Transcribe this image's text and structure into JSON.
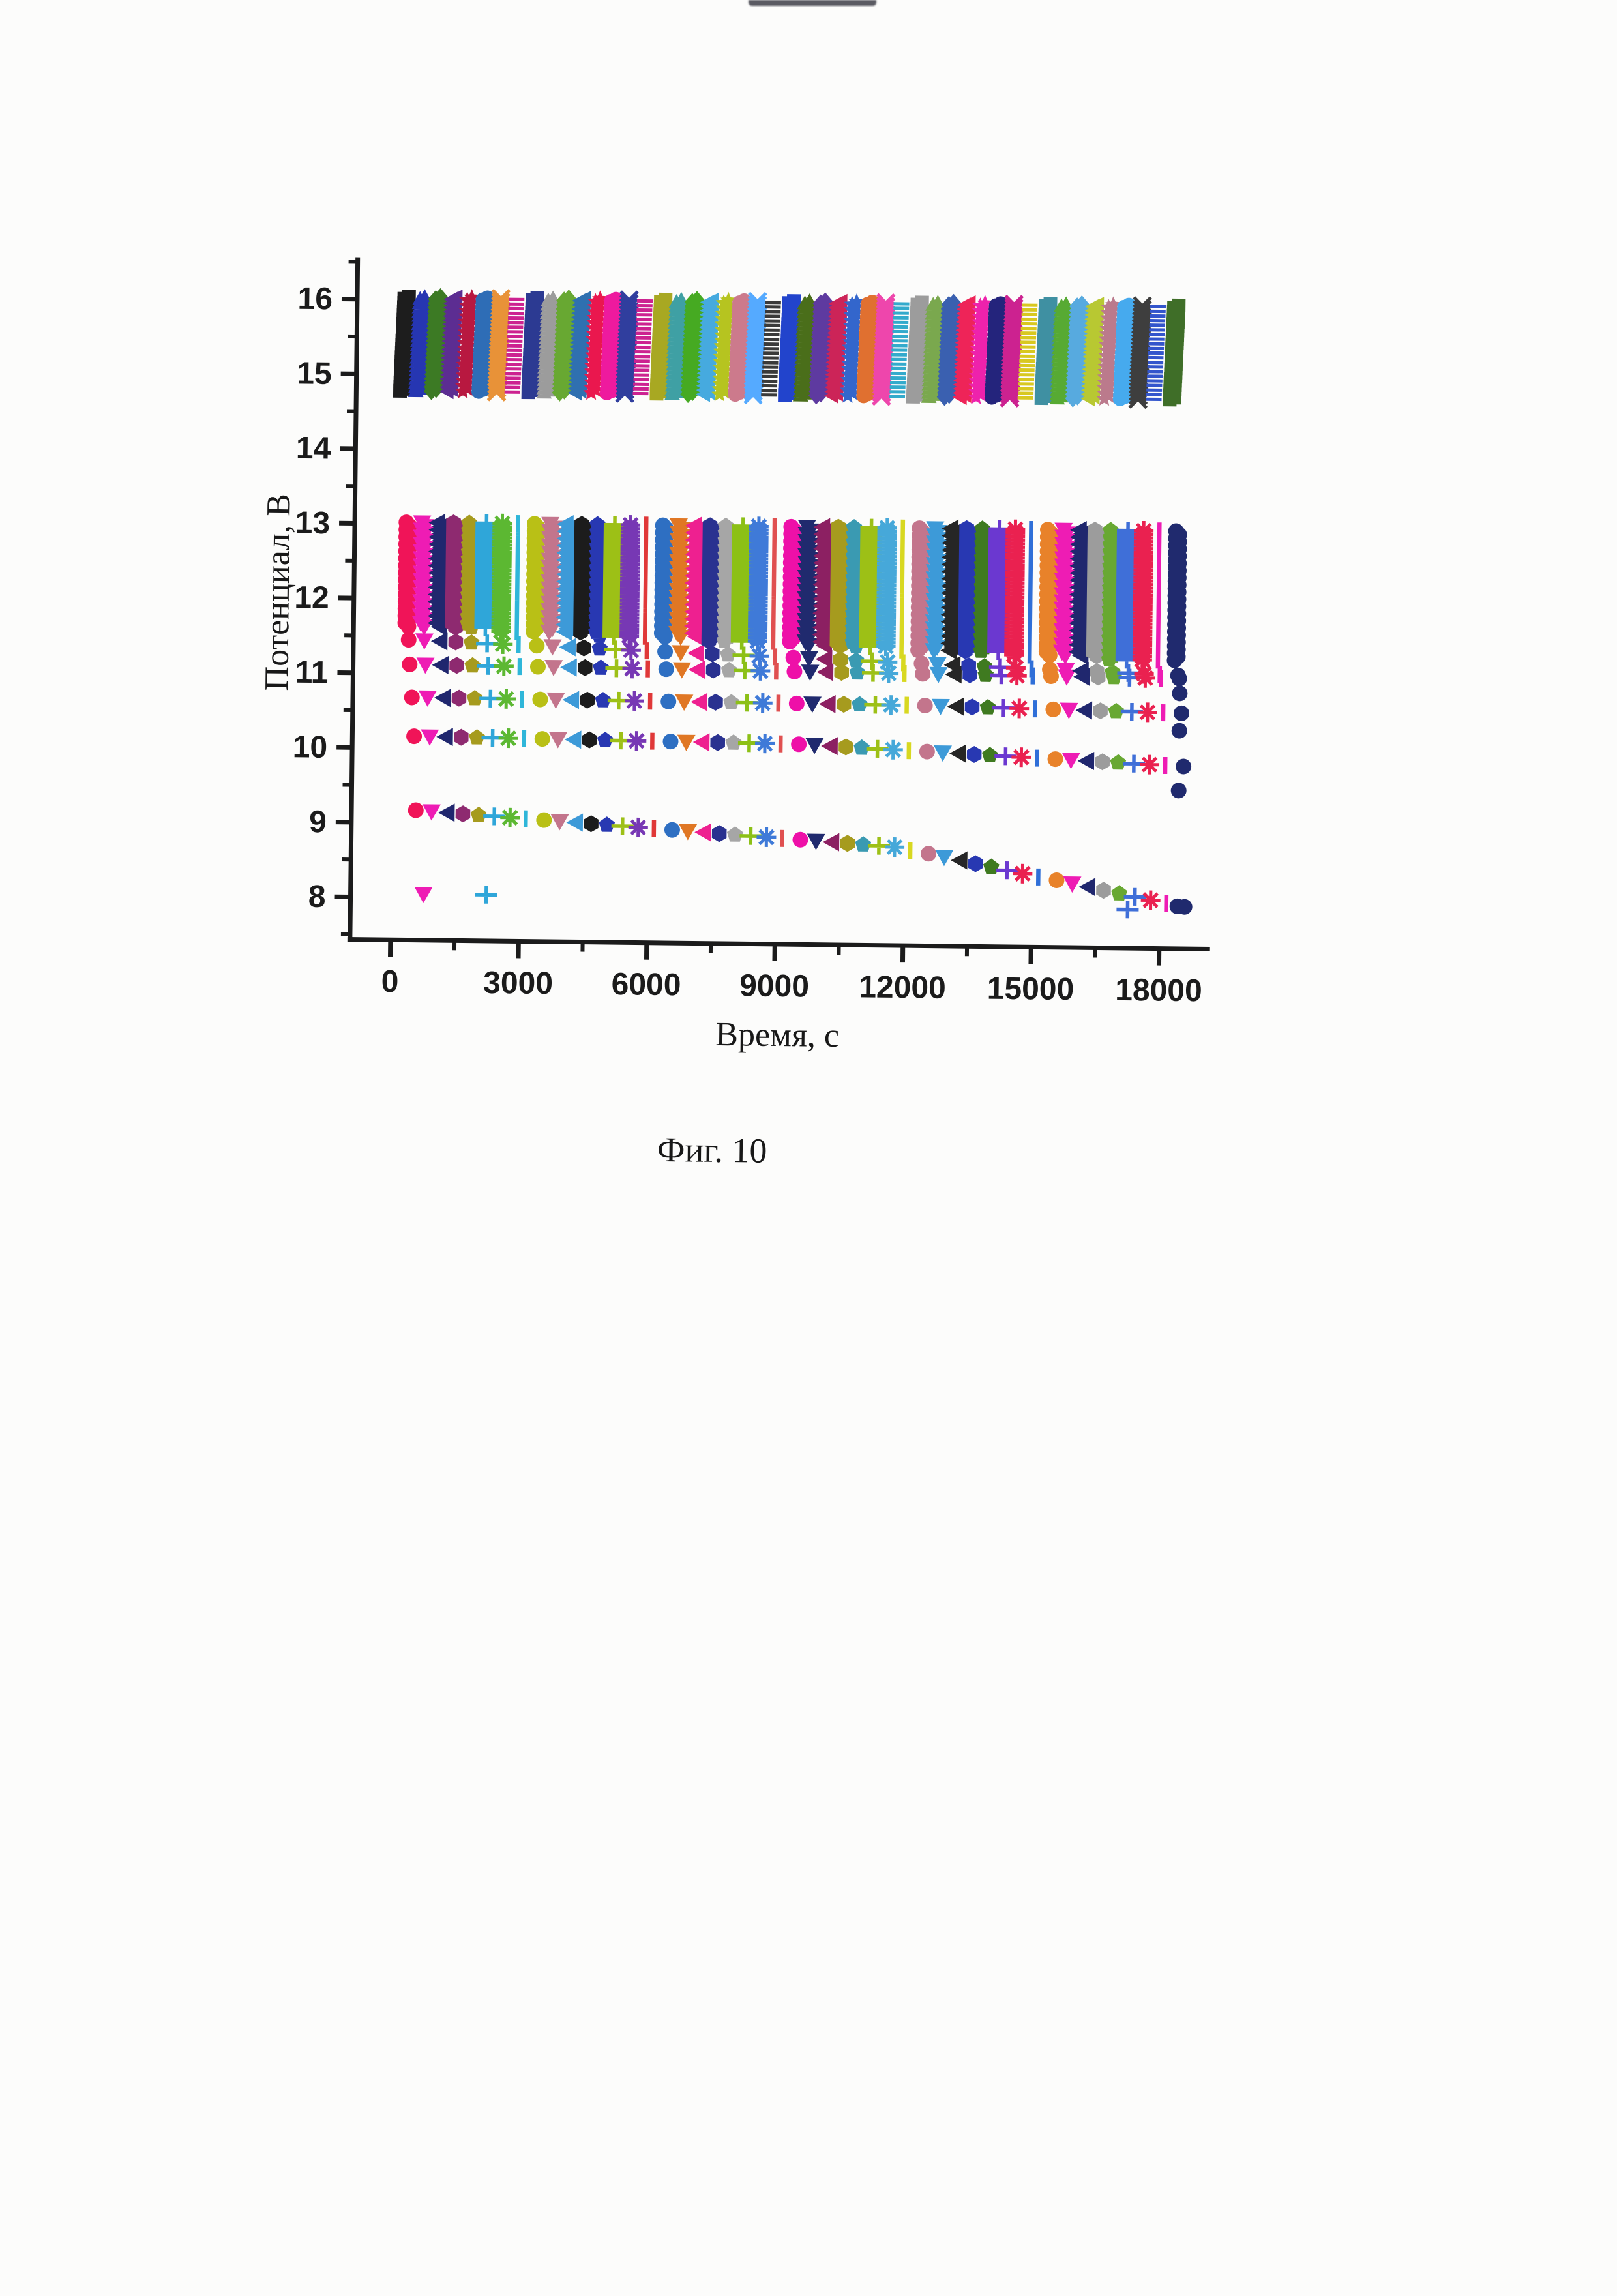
{
  "page": {
    "caption": "Фиг. 10",
    "background": "#fcfcfb",
    "ink_color": "#1b1b1b"
  },
  "chart_data": {
    "type": "scatter",
    "title": "",
    "xlabel": "Время, с",
    "ylabel": "Потенциал, В",
    "xlim": [
      -950,
      19200
    ],
    "ylim": [
      7.4,
      16.55
    ],
    "xticks": [
      0,
      3000,
      6000,
      9000,
      12000,
      15000,
      18000
    ],
    "xminor_step": 1500,
    "yticks": [
      8,
      9,
      10,
      11,
      12,
      13,
      14,
      15,
      16
    ],
    "yminor_step": 0.5,
    "grid": false,
    "legend": "none",
    "description": "49 charge/discharge cycling curves; charge plateau band 14.78–16.05 V, discharge drop 13.0 V to ~11.3 V dense, tail rows near 11.1 / 10.65 / 10.15 / 9.15 V sagging toward 8.0 V at later cycles",
    "cycles": {
      "count": 49,
      "group_size": 8,
      "t_start": 300,
      "t_step": 368,
      "group_gap": 60,
      "charge": {
        "v_min": 14.78,
        "v_max": 16.05,
        "v_step": 0.028,
        "t_offset": -130,
        "marker_cycle": [
          "square",
          "triangle-up",
          "diamond",
          "triangle-left",
          "star",
          "circle",
          "x-cross",
          "h-dash"
        ],
        "group_colors": [
          [
            "#1d1d1d",
            "#2636b2",
            "#3c7a24",
            "#5c2d92",
            "#b81840",
            "#2e6db6",
            "#e89238",
            "#cc2290"
          ],
          [
            "#2c3a92",
            "#9c9c9c",
            "#68a832",
            "#2f70b0",
            "#ea174e",
            "#ee1a9e",
            "#303e9e",
            "#cc2290"
          ],
          [
            "#a8a822",
            "#3fa0a4",
            "#46aa22",
            "#46aadf",
            "#b6c420",
            "#cc7a8c",
            "#55aaff",
            "#3a3a3a"
          ],
          [
            "#2244cc",
            "#4a6e1a",
            "#5e3aa0",
            "#cc2458",
            "#3366cc",
            "#e07030",
            "#ee46ac",
            "#33aacc"
          ],
          [
            "#9c9c9c",
            "#7aa84e",
            "#3a60b0",
            "#ee2458",
            "#ee22ac",
            "#24247c",
            "#cc2290",
            "#d8c820"
          ],
          [
            "#3f90a2",
            "#57aa33",
            "#57aadf",
            "#b8c832",
            "#bb7a8c",
            "#46aaee",
            "#3e3e3e",
            "#3355cc"
          ],
          [
            "#3f6e28"
          ]
        ]
      },
      "discharge": {
        "v_top": 13.02,
        "v_step": 0.048,
        "dense_bottom_base": 11.62,
        "dense_bottom_slope": 0.0075,
        "knee_offset": 0.17,
        "tail_rows": [
          {
            "base": 11.12,
            "slope1": 0.0015,
            "break": 48,
            "slope2": 0
          },
          {
            "base": 10.68,
            "slope1": 0.001,
            "break": 32,
            "slope2": 0.004
          },
          {
            "base": 10.16,
            "slope1": 0.002,
            "break": 24,
            "slope2": 0.01
          },
          {
            "base": 9.17,
            "slope1": 0.014,
            "break": 30,
            "slope2": 0.042
          }
        ],
        "extra_points": [
          {
            "cycle": 1,
            "v": 8.05
          },
          {
            "cycle": 5,
            "v": 8.05
          },
          {
            "cycle": 45,
            "v": 7.95
          },
          {
            "cycle": 48,
            "v": 10.85
          },
          {
            "cycle": 48,
            "v": 10.35
          },
          {
            "cycle": 48,
            "v": 9.55
          },
          {
            "cycle": 48,
            "v": 8.0
          }
        ],
        "marker_cycle": [
          "circle",
          "triangle-down",
          "triangle-left",
          "hexagon",
          "pentagon",
          "plus",
          "asterisk-8",
          "v-line"
        ],
        "group_colors": [
          [
            "#f01458",
            "#ee1cb4",
            "#20276e",
            "#8e2a70",
            "#a69b1e",
            "#2fa6d9",
            "#5cb832",
            "#2fb6d9"
          ],
          [
            "#b9c016",
            "#c3758c",
            "#3d9ad8",
            "#1c1c1c",
            "#2838b2",
            "#9dc016",
            "#7738b4",
            "#e03838"
          ],
          [
            "#2e6fc2",
            "#e07724",
            "#ee2090",
            "#2a3290",
            "#a6a6a6",
            "#8cc016",
            "#3f7ad8",
            "#e05050"
          ],
          [
            "#ee10a8",
            "#202a6e",
            "#8c2062",
            "#a69b1e",
            "#3a9ab2",
            "#9dc016",
            "#46a8d9",
            "#d8d820"
          ],
          [
            "#c3758c",
            "#3d9ad8",
            "#262626",
            "#2838b2",
            "#3f7a20",
            "#6b38d0",
            "#ea2150",
            "#2f6fd8"
          ],
          [
            "#e8822a",
            "#ee1cb4",
            "#20276e",
            "#9c9c9c",
            "#68a832",
            "#3f6fd8",
            "#ea2150",
            "#ee1cb4"
          ],
          [
            "#202a6e"
          ]
        ]
      }
    }
  }
}
